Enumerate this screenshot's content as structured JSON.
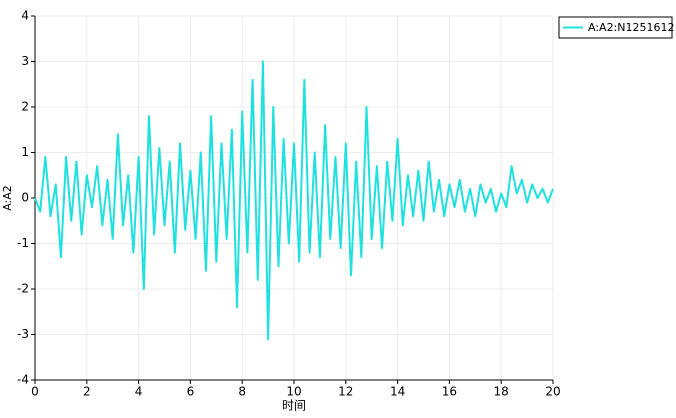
{
  "chart_data": {
    "type": "line",
    "xlabel": "时间",
    "ylabel": "A:A2",
    "x": [
      0,
      0.2,
      0.4,
      0.6,
      0.8,
      1,
      1.2,
      1.4,
      1.6,
      1.8,
      2,
      2.2,
      2.4,
      2.6,
      2.8,
      3,
      3.2,
      3.4,
      3.6,
      3.8,
      4,
      4.2,
      4.4,
      4.6,
      4.8,
      5,
      5.2,
      5.4,
      5.6,
      5.8,
      6,
      6.2,
      6.4,
      6.6,
      6.8,
      7,
      7.2,
      7.4,
      7.6,
      7.8,
      8,
      8.2,
      8.4,
      8.6,
      8.8,
      9,
      9.2,
      9.4,
      9.6,
      9.8,
      10,
      10.2,
      10.4,
      10.6,
      10.8,
      11,
      11.2,
      11.4,
      11.6,
      11.8,
      12,
      12.2,
      12.4,
      12.6,
      12.8,
      13,
      13.2,
      13.4,
      13.6,
      13.8,
      14,
      14.2,
      14.4,
      14.6,
      14.8,
      15,
      15.2,
      15.4,
      15.6,
      15.8,
      16,
      16.2,
      16.4,
      16.6,
      16.8,
      17,
      17.2,
      17.4,
      17.6,
      17.8,
      18,
      18.2,
      18.4,
      18.6,
      18.8,
      19,
      19.2,
      19.4,
      19.6,
      19.8,
      20
    ],
    "series": [
      {
        "name": "A:A2:N1251612",
        "color": "#1fe1e0",
        "values": [
          0,
          -0.3,
          0.9,
          -0.4,
          0.3,
          -1.3,
          0.9,
          -0.5,
          0.8,
          -0.8,
          0.5,
          -0.2,
          0.7,
          -0.6,
          0.4,
          -0.9,
          1.4,
          -0.6,
          0.5,
          -1.2,
          0.9,
          -2.0,
          1.8,
          -0.8,
          1.1,
          -0.6,
          0.8,
          -1.2,
          1.2,
          -0.7,
          0.6,
          -0.9,
          1.0,
          -1.6,
          1.8,
          -1.4,
          1.2,
          -0.9,
          1.5,
          -2.4,
          1.9,
          -1.2,
          2.6,
          -1.8,
          3.0,
          -3.1,
          2.0,
          -1.5,
          1.3,
          -1.0,
          1.2,
          -1.4,
          2.6,
          -1.2,
          1.0,
          -1.3,
          1.6,
          -0.9,
          0.9,
          -1.1,
          1.2,
          -1.7,
          0.8,
          -1.3,
          2.0,
          -0.9,
          0.7,
          -1.1,
          0.8,
          -0.5,
          1.3,
          -0.6,
          0.5,
          -0.4,
          0.6,
          -0.5,
          0.8,
          -0.3,
          0.4,
          -0.4,
          0.3,
          -0.2,
          0.4,
          -0.3,
          0.2,
          -0.4,
          0.3,
          -0.1,
          0.2,
          -0.3,
          0.1,
          -0.2,
          0.7,
          0.1,
          0.4,
          -0.1,
          0.3,
          0,
          0.2,
          -0.1,
          0.2
        ]
      }
    ],
    "xlim": [
      0,
      20
    ],
    "xticks": [
      0,
      2,
      4,
      6,
      8,
      10,
      12,
      14,
      16,
      18,
      20
    ],
    "ylim": [
      -4,
      4
    ],
    "yticks": [
      -4,
      -3,
      -2,
      -1,
      0,
      1,
      2,
      3,
      4
    ],
    "grid": true,
    "legend": "right"
  }
}
